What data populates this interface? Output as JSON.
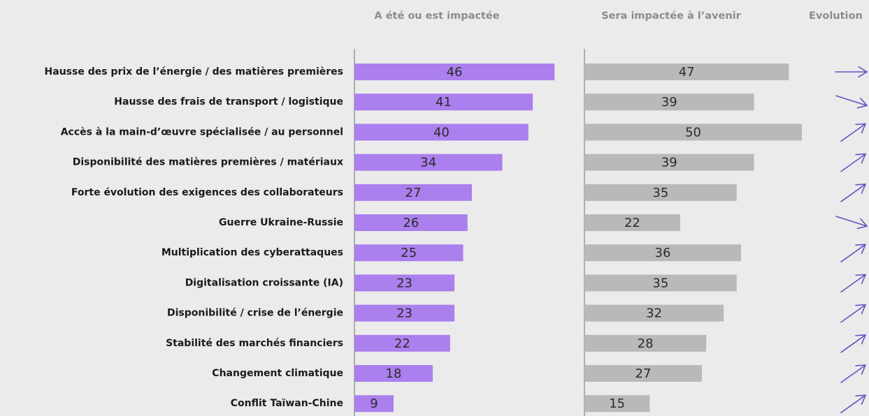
{
  "chart_data": {
    "type": "bar",
    "orientation": "horizontal",
    "categories": [
      "Hausse des prix de l’énergie / des matières premières",
      "Hausse des frais de transport / logistique",
      "Accès à la main-d’œuvre spécialisée / au personnel",
      "Disponibilité des matières premières / matériaux",
      "Forte évolution des exigences des collaborateurs",
      "Guerre Ukraine-Russie",
      "Multiplication des cyberattaques",
      "Digitalisation croissante (IA)",
      "Disponibilité / crise de l’énergie",
      "Stabilité des marchés financiers",
      "Changement climatique",
      "Conflit Taïwan-Chine"
    ],
    "series": [
      {
        "name": "A été ou est impactée",
        "color": "#ab7fee",
        "values": [
          46,
          41,
          40,
          34,
          27,
          26,
          25,
          23,
          23,
          22,
          18,
          9
        ]
      },
      {
        "name": "Sera impactée à l’avenir",
        "color": "#b9b9b9",
        "values": [
          47,
          39,
          50,
          39,
          35,
          22,
          36,
          35,
          32,
          28,
          27,
          15
        ]
      }
    ],
    "evolution_label": "Evolution",
    "evolution_color": "#6b4fc4",
    "xlim": [
      0,
      50
    ]
  }
}
